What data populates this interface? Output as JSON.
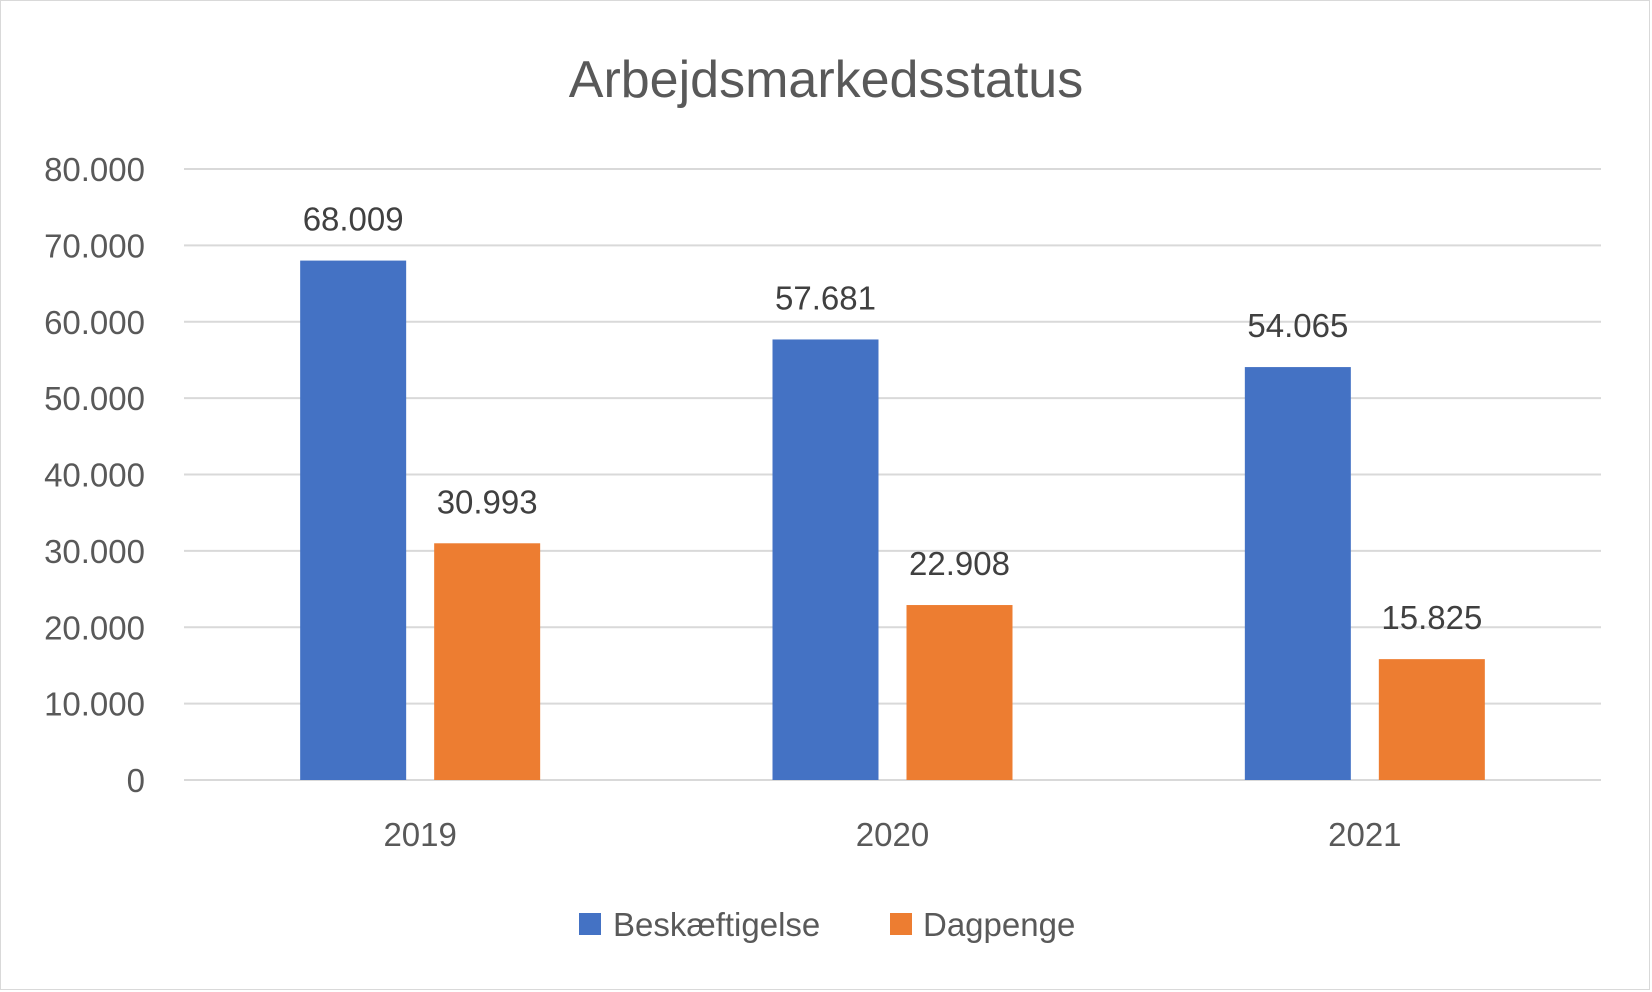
{
  "chart_data": {
    "type": "bar",
    "title": "Arbejdsmarkedsstatus",
    "xlabel": "",
    "ylabel": "",
    "categories": [
      "2019",
      "2020",
      "2021"
    ],
    "series": [
      {
        "name": "Beskæftigelse",
        "color": "#4472C4",
        "values": [
          68009,
          57681,
          54065
        ],
        "labels": [
          "68.009",
          "57.681",
          "54.065"
        ]
      },
      {
        "name": "Dagpenge",
        "color": "#ED7D31",
        "values": [
          30993,
          22908,
          15825
        ],
        "labels": [
          "30.993",
          "22.908",
          "15.825"
        ]
      }
    ],
    "ylim": [
      0,
      80000
    ],
    "yticks": [
      0,
      10000,
      20000,
      30000,
      40000,
      50000,
      60000,
      70000,
      80000
    ],
    "ytick_labels": [
      "0",
      "10.000",
      "20.000",
      "30.000",
      "40.000",
      "50.000",
      "60.000",
      "70.000",
      "80.000"
    ],
    "grid": true,
    "legend_position": "bottom",
    "gridline_color": "#d9d9d9"
  }
}
